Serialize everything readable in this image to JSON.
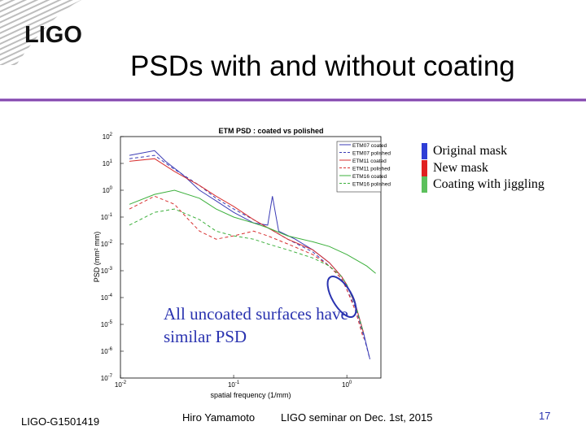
{
  "logo": {
    "text": "LIGO"
  },
  "slide": {
    "title": "PSDs with and without coating"
  },
  "chart_data": {
    "type": "line",
    "title": "ETM PSD : coated vs polished",
    "xlabel": "spatial frequency (1/mm)",
    "ylabel": "PSD (mm² mm)",
    "xscale": "log",
    "yscale": "log",
    "xlim": [
      0.01,
      2
    ],
    "ylim": [
      1e-07,
      100
    ],
    "x_ticks": [
      {
        "v": 0.01,
        "m": "10",
        "e": "-2"
      },
      {
        "v": 0.1,
        "m": "10",
        "e": "-1"
      },
      {
        "v": 1,
        "m": "10",
        "e": "0"
      }
    ],
    "y_ticks": [
      {
        "v": 100,
        "m": "10",
        "e": "2"
      },
      {
        "v": 10,
        "m": "10",
        "e": "1"
      },
      {
        "v": 1,
        "m": "10",
        "e": "0"
      },
      {
        "v": 0.1,
        "m": "10",
        "e": "-1"
      },
      {
        "v": 0.01,
        "m": "10",
        "e": "-2"
      },
      {
        "v": 0.001,
        "m": "10",
        "e": "-3"
      },
      {
        "v": 0.0001,
        "m": "10",
        "e": "-4"
      },
      {
        "v": 1e-05,
        "m": "10",
        "e": "-5"
      },
      {
        "v": 1e-06,
        "m": "10",
        "e": "-6"
      },
      {
        "v": 1e-07,
        "m": "10",
        "e": "-7"
      }
    ],
    "legend_position": "top-right",
    "series": [
      {
        "name": "ETM07 coated",
        "color": "#3b3bb5",
        "dash": "",
        "x": [
          0.012,
          0.02,
          0.025,
          0.035,
          0.05,
          0.07,
          0.1,
          0.15,
          0.2,
          0.22,
          0.25,
          0.35,
          0.5,
          0.7,
          0.9,
          1.0,
          1.2,
          1.4,
          1.6
        ],
        "y": [
          20,
          30,
          12,
          4,
          1,
          0.4,
          0.15,
          0.06,
          0.05,
          0.6,
          0.03,
          0.015,
          0.006,
          0.002,
          0.0006,
          0.0003,
          5e-05,
          5e-06,
          5e-07
        ]
      },
      {
        "name": "ETM07 polished",
        "color": "#3b3bb5",
        "dash": "4,3",
        "x": [
          0.012,
          0.02,
          0.03,
          0.05,
          0.07,
          0.1,
          0.15,
          0.2,
          0.3,
          0.5,
          0.7,
          0.9,
          1.0,
          1.2,
          1.4,
          1.6
        ],
        "y": [
          15,
          20,
          6,
          1.5,
          0.5,
          0.2,
          0.08,
          0.04,
          0.015,
          0.005,
          0.0015,
          0.0005,
          0.0002,
          4e-05,
          4e-06,
          5e-07
        ]
      },
      {
        "name": "ETM11 coated",
        "color": "#d83030",
        "dash": "",
        "x": [
          0.012,
          0.02,
          0.03,
          0.05,
          0.07,
          0.1,
          0.15,
          0.2,
          0.3,
          0.5,
          0.7,
          0.9,
          1.0,
          1.2,
          1.4
        ],
        "y": [
          12,
          15,
          5,
          1.5,
          0.6,
          0.25,
          0.08,
          0.04,
          0.015,
          0.006,
          0.002,
          0.0006,
          0.0003,
          5e-05,
          5e-06
        ]
      },
      {
        "name": "ETM11 polished",
        "color": "#d83030",
        "dash": "4,3",
        "x": [
          0.012,
          0.02,
          0.03,
          0.04,
          0.05,
          0.07,
          0.1,
          0.15,
          0.2,
          0.3,
          0.5,
          0.7,
          0.9,
          1.0,
          1.2,
          1.4
        ],
        "y": [
          0.2,
          0.6,
          0.3,
          0.08,
          0.03,
          0.015,
          0.02,
          0.03,
          0.02,
          0.01,
          0.004,
          0.0015,
          0.0005,
          0.0002,
          3e-05,
          3e-06
        ]
      },
      {
        "name": "ETM16 coated",
        "color": "#3cb03c",
        "dash": "",
        "x": [
          0.012,
          0.02,
          0.03,
          0.05,
          0.07,
          0.1,
          0.15,
          0.2,
          0.3,
          0.5,
          0.7,
          1.0,
          1.5,
          1.8
        ],
        "y": [
          0.3,
          0.7,
          1.0,
          0.5,
          0.2,
          0.1,
          0.06,
          0.04,
          0.02,
          0.012,
          0.008,
          0.004,
          0.0015,
          0.0008
        ]
      },
      {
        "name": "ETM16 polished",
        "color": "#3cb03c",
        "dash": "4,3",
        "x": [
          0.012,
          0.02,
          0.03,
          0.05,
          0.07,
          0.1,
          0.15,
          0.2,
          0.3,
          0.5,
          0.7,
          0.9,
          1.0,
          1.2,
          1.4
        ],
        "y": [
          0.05,
          0.15,
          0.2,
          0.08,
          0.03,
          0.02,
          0.015,
          0.01,
          0.006,
          0.003,
          0.0015,
          0.0006,
          0.0003,
          5e-05,
          5e-06
        ]
      }
    ]
  },
  "legend_boxes": [
    {
      "color": "#2e3ed6",
      "label": "Original mask"
    },
    {
      "color": "#e02020",
      "label": "New mask"
    },
    {
      "color": "#5cc05c",
      "label": "Coating with jiggling"
    }
  ],
  "annotation": "All uncoated surfaces have similar PSD",
  "footer": {
    "doc_id": "LIGO-G1501419",
    "author": "Hiro Yamamoto",
    "event": "LIGO seminar on Dec. 1st, 2015",
    "page": "17"
  }
}
